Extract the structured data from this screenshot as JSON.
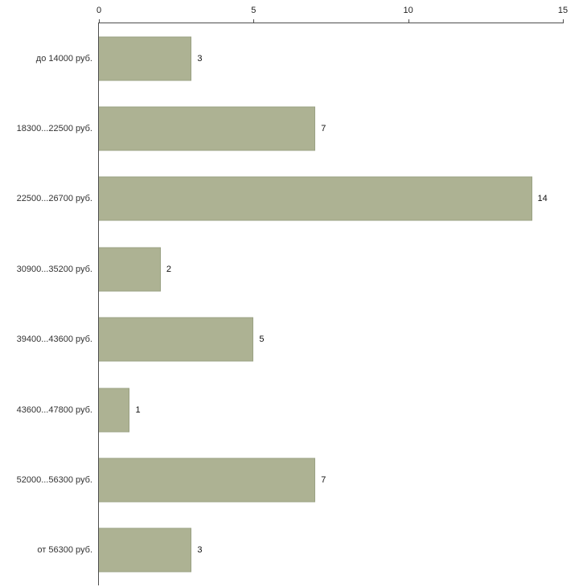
{
  "chart_data": {
    "type": "bar",
    "orientation": "horizontal",
    "title": "",
    "xlabel": "",
    "ylabel": "",
    "categories": [
      "до 14000 руб.",
      "18300...22500 руб.",
      "22500...26700 руб.",
      "30900...35200 руб.",
      "39400...43600 руб.",
      "43600...47800 руб.",
      "52000...56300 руб.",
      "от 56300 руб."
    ],
    "values": [
      3,
      7,
      14,
      2,
      5,
      1,
      7,
      3
    ],
    "xlim": [
      0,
      15
    ],
    "xticks": [
      0,
      5,
      10,
      15
    ],
    "grid": false,
    "legend": false,
    "axis_position": "top",
    "bar_color": "#adb293",
    "bar_border_color": "#9aa183",
    "axis_color": "#4d4d4d"
  }
}
